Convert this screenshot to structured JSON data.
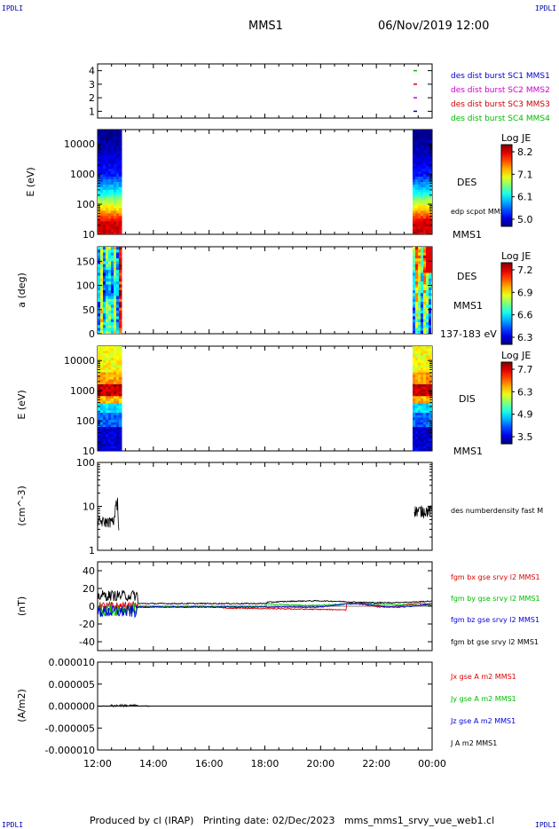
{
  "header": {
    "corner_left_top": "IPDLI",
    "corner_right_top": "IPDLI",
    "corner_left_bottom": "IPDLI",
    "corner_right_bottom": "IPDLI",
    "mission": "MMS1",
    "datetime": "06/Nov/2019 12:00"
  },
  "footer": {
    "text": "Produced by cl (IRAP)   Printing date: 02/Dec/2023   mms_mms1_srvy_vue_web1.cl"
  },
  "colors": {
    "mms1": "#0000cc",
    "mms2": "#cc00cc",
    "mms3": "#cc0000",
    "mms4": "#00bb00",
    "bx": "#dd0000",
    "by": "#00bb00",
    "bz": "#0000dd",
    "bt": "#000000"
  },
  "chart_data": [
    {
      "type": "scatter",
      "id": "burst",
      "yticks": [
        "1",
        "2",
        "3",
        "4"
      ],
      "ylim": [
        0.5,
        4.5
      ],
      "legend": [
        "des dist burst SC1 MMS1",
        "des dist burst SC2 MMS2",
        "des dist burst SC3 MMS3",
        "des dist burst SC4 MMS4"
      ]
    },
    {
      "type": "heatmap",
      "id": "des_energy",
      "ylabel": "E (eV)",
      "yticks": [
        "10",
        "100",
        "1000",
        "10000"
      ],
      "label_main": "DES",
      "label_sub": "edp scpot MMS1",
      "label_sc": "MMS1",
      "colorbar_title": "Log JE",
      "colorbar_ticks": [
        "8.2",
        "7.1",
        "6.1",
        "5.0"
      ]
    },
    {
      "type": "heatmap",
      "id": "des_pitch",
      "ylabel": "a (deg)",
      "yticks": [
        "0",
        "50",
        "100",
        "150"
      ],
      "ylim": [
        0,
        180
      ],
      "label_main": "DES",
      "label_sc": "MMS1",
      "label_range": "137-183 eV",
      "colorbar_title": "Log JE",
      "colorbar_ticks": [
        "7.2",
        "6.9",
        "6.6",
        "6.3"
      ]
    },
    {
      "type": "heatmap",
      "id": "dis_energy",
      "ylabel": "E (eV)",
      "yticks": [
        "10",
        "100",
        "1000",
        "10000"
      ],
      "label_main": "DIS",
      "label_sc": "MMS1",
      "colorbar_title": "Log JE",
      "colorbar_ticks": [
        "7.7",
        "6.3",
        "4.9",
        "3.5"
      ]
    },
    {
      "type": "line",
      "id": "density",
      "ylabel": "(cm^-3)",
      "yticks": [
        "1",
        "10",
        "100"
      ],
      "legend": [
        "des numberdensity fast M"
      ]
    },
    {
      "type": "line",
      "id": "bfield",
      "ylabel": "(nT)",
      "yticks": [
        "-40",
        "-20",
        "0",
        "20",
        "40"
      ],
      "ylim": [
        -50,
        50
      ],
      "legend": [
        "fgm bx gse srvy l2 MMS1",
        "fgm by gse srvy l2 MMS1",
        "fgm bz gse srvy l2 MMS1",
        "fgm bt gse srvy l2 MMS1"
      ]
    },
    {
      "type": "line",
      "id": "current",
      "ylabel": "(A/m2)",
      "yticks": [
        "-0.000010",
        "-0.000005",
        "0.000000",
        "0.000005",
        "0.000010"
      ],
      "ylim": [
        -1e-05,
        1e-05
      ],
      "legend": [
        "Jx gse A m2 MMS1",
        "Jy gse A m2 MMS1",
        "Jz gse A m2 MMS1",
        "J A m2 MMS1"
      ]
    }
  ],
  "xaxis": {
    "ticks": [
      "12:00",
      "14:00",
      "16:00",
      "18:00",
      "20:00",
      "22:00",
      "00:00"
    ],
    "hours": [
      12,
      14,
      16,
      18,
      20,
      22,
      24
    ],
    "range": [
      12,
      24
    ]
  }
}
